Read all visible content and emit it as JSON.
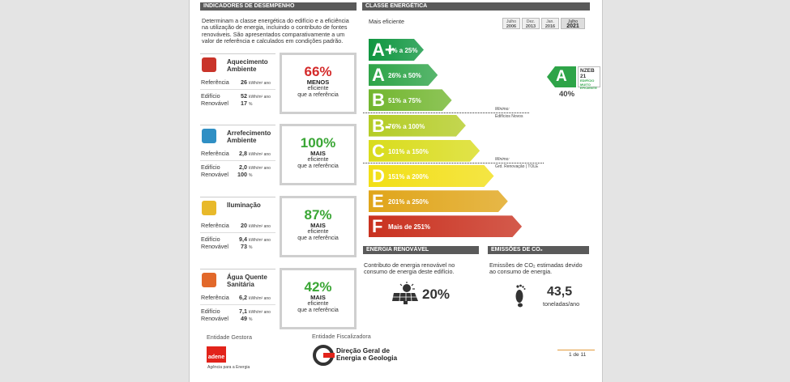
{
  "left": {
    "header": "INDICADORES DE DESEMPENHO",
    "intro": "Determinam a classe energética do edifício e a eficiência na utilização de energia, incluindo o contributo de fontes renováveis. São apresentados comparativamente a um valor de referência e calculados em condições padrão.",
    "indicators": [
      {
        "title": "Aquecimento Ambiente",
        "reference_label": "Referência",
        "reference": "26",
        "building_label": "Edifício",
        "building": "52",
        "renewable_label": "Renovável",
        "renewable": "17",
        "unit": "kWh/m² ano",
        "renewable_unit": "%",
        "percent": "66%",
        "percent_color": "#d42a2a",
        "comparison": "MENOS",
        "efficiency": "eficiente",
        "note": "que a referência"
      },
      {
        "title": "Arrefecimento Ambiente",
        "reference_label": "Referência",
        "reference": "2,8",
        "building_label": "Edifício",
        "building": "2,0",
        "renewable_label": "Renovável",
        "renewable": "100",
        "unit": "kWh/m² ano",
        "renewable_unit": "%",
        "percent": "100%",
        "percent_color": "#3aa635",
        "comparison": "MAIS",
        "efficiency": "eficiente",
        "note": "que a referência"
      },
      {
        "title": "Iluminação",
        "reference_label": "Referência",
        "reference": "20",
        "building_label": "Edifício",
        "building": "9,4",
        "renewable_label": "Renovável",
        "renewable": "73",
        "unit": "kWh/m² ano",
        "renewable_unit": "%",
        "percent": "87%",
        "percent_color": "#3aa635",
        "comparison": "MAIS",
        "efficiency": "eficiente",
        "note": "que a referência"
      },
      {
        "title": "Água Quente Sanitária",
        "reference_label": "Referência",
        "reference": "6,2",
        "building_label": "Edifício",
        "building": "7,1",
        "renewable_label": "Renovável",
        "renewable": "49",
        "unit": "kWh/m² ano",
        "renewable_unit": "%",
        "percent": "42%",
        "percent_color": "#3aa635",
        "comparison": "MAIS",
        "efficiency": "eficiente",
        "note": "que a referência"
      }
    ]
  },
  "energy_class": {
    "header": "CLASSE ENERGÉTICA",
    "top_label": "Mais eficiente",
    "timeline": [
      {
        "month": "Julho",
        "year": "2006"
      },
      {
        "month": "Dez.",
        "year": "2013"
      },
      {
        "month": "Jan.",
        "year": "2016"
      },
      {
        "month": "Julho",
        "year": "2021"
      }
    ],
    "classes": [
      {
        "label": "A+",
        "range": "0% a 25%",
        "color": "#0f9640"
      },
      {
        "label": "A",
        "range": "26% a 50%",
        "color": "#2ea448"
      },
      {
        "label": "B",
        "range": "51% a 75%",
        "color": "#72b62f"
      },
      {
        "label": "B-",
        "range": "76% a 100%",
        "color": "#b4cc25"
      },
      {
        "label": "C",
        "range": "101% a 150%",
        "color": "#d9dc1c"
      },
      {
        "label": "D",
        "range": "151% a 200%",
        "color": "#f2df16"
      },
      {
        "label": "E",
        "range": "201% a 250%",
        "color": "#e0a51a"
      },
      {
        "label": "F",
        "range": "Mais de 251%",
        "color": "#c9311f"
      }
    ],
    "minimums": [
      {
        "label": "Mínimo:",
        "text": "Edifícios Novos"
      },
      {
        "label": "Mínimo:",
        "text": "Grd. Renovação | TOLE"
      }
    ],
    "result": {
      "class": "A",
      "badge": "NZEB 21",
      "badge_text": "EDIFÍCIO MUITO EFICIENTE",
      "percent": "40%"
    }
  },
  "renewable": {
    "header": "ENERGIA RENOVÁVEL",
    "text": "Contributo de energia renovável no consumo de energia deste edifício.",
    "value": "20%"
  },
  "emissions": {
    "header": "EMISSÕES DE CO₂",
    "text": "Emissões de CO₂ estimadas devido ao consumo de energia.",
    "value": "43,5",
    "unit": "toneladas/ano"
  },
  "footer": {
    "manager_label": "Entidade Gestora",
    "manager_logo": "adene",
    "manager_name": "Agência para a Energia",
    "inspector_label": "Entidade Fiscalizadora",
    "inspector_name": "Direção Geral de Energia e Geologia",
    "page": "1 de 11"
  }
}
